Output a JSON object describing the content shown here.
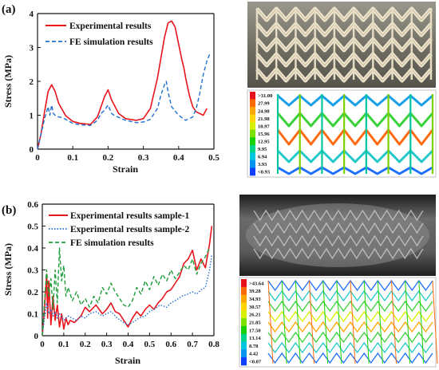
{
  "panels": [
    {
      "label": "(a)",
      "chart_data": {
        "type": "line",
        "xlabel": "Strain",
        "ylabel": "Stress (MPa)",
        "xlim": [
          0,
          0.5
        ],
        "ylim": [
          0,
          4
        ],
        "xticks": [
          "0",
          "0.1",
          "0.2",
          "0.3",
          "0.4",
          "0.5"
        ],
        "yticks": [
          "0",
          "1",
          "2",
          "3",
          "4"
        ],
        "grid": false,
        "legend": "top-left",
        "series": [
          {
            "name": "Experimental results",
            "color": "#e8141c",
            "style": "solid",
            "x": [
              0,
              0.01,
              0.02,
              0.03,
              0.04,
              0.05,
              0.06,
              0.08,
              0.1,
              0.12,
              0.15,
              0.17,
              0.19,
              0.2,
              0.21,
              0.23,
              0.25,
              0.28,
              0.3,
              0.32,
              0.34,
              0.36,
              0.37,
              0.38,
              0.39,
              0.4,
              0.41,
              0.415,
              0.42,
              0.43,
              0.44,
              0.45,
              0.46,
              0.47,
              0.48
            ],
            "y": [
              0,
              0.45,
              1.1,
              1.7,
              1.9,
              1.7,
              1.35,
              0.98,
              0.82,
              0.76,
              0.73,
              0.95,
              1.55,
              1.75,
              1.45,
              1.05,
              0.9,
              0.85,
              0.9,
              1.2,
              2.1,
              3.3,
              3.72,
              3.78,
              3.6,
              3.1,
              2.6,
              2.4,
              2.1,
              1.6,
              1.25,
              1.1,
              1.05,
              1.0,
              1.2
            ]
          },
          {
            "name": "FE simulation results",
            "color": "#1f6fd1",
            "style": "dashed",
            "x": [
              0,
              0.01,
              0.02,
              0.03,
              0.035,
              0.04,
              0.045,
              0.05,
              0.06,
              0.07,
              0.08,
              0.1,
              0.12,
              0.15,
              0.17,
              0.18,
              0.19,
              0.2,
              0.21,
              0.22,
              0.25,
              0.28,
              0.3,
              0.32,
              0.34,
              0.35,
              0.36,
              0.365,
              0.37,
              0.38,
              0.4,
              0.42,
              0.44,
              0.45,
              0.46,
              0.47,
              0.48,
              0.49
            ],
            "y": [
              0,
              0.45,
              0.9,
              1.25,
              1.0,
              1.3,
              1.05,
              1.0,
              0.95,
              0.93,
              0.88,
              0.76,
              0.72,
              0.7,
              0.85,
              1.05,
              1.15,
              1.3,
              1.05,
              0.98,
              0.85,
              0.78,
              0.8,
              0.88,
              1.2,
              1.6,
              1.9,
              2.0,
              1.7,
              1.25,
              1.0,
              0.85,
              0.95,
              1.2,
              1.65,
              2.2,
              2.6,
              2.85
            ]
          }
        ]
      },
      "colorbar_values": [
        "31.00",
        "27.99",
        "24.98",
        "21.98",
        "18.97",
        "15.96",
        "12.95",
        "9.95",
        "6.94",
        "3.93",
        "0.93"
      ]
    },
    {
      "label": "(b)",
      "chart_data": {
        "type": "line",
        "xlabel": "Strain",
        "ylabel": "Stress (MPa)",
        "xlim": [
          0,
          0.8
        ],
        "ylim": [
          0,
          0.6
        ],
        "xticks": [
          "0",
          "0.1",
          "0.2",
          "0.3",
          "0.4",
          "0.5",
          "0.6",
          "0.7",
          "0.8"
        ],
        "yticks": [
          "0",
          "0.1",
          "0.2",
          "0.3",
          "0.4",
          "0.5",
          "0.6"
        ],
        "grid": false,
        "legend": "top-left",
        "series": [
          {
            "name": "Experimental results sample-1",
            "color": "#e8141c",
            "style": "solid",
            "x": [
              0,
              0.01,
              0.02,
              0.025,
              0.03,
              0.04,
              0.05,
              0.06,
              0.07,
              0.08,
              0.09,
              0.1,
              0.11,
              0.12,
              0.13,
              0.15,
              0.18,
              0.2,
              0.22,
              0.25,
              0.28,
              0.3,
              0.32,
              0.34,
              0.36,
              0.38,
              0.4,
              0.42,
              0.44,
              0.46,
              0.48,
              0.5,
              0.52,
              0.54,
              0.56,
              0.58,
              0.6,
              0.62,
              0.64,
              0.66,
              0.68,
              0.7,
              0.72,
              0.74,
              0.76,
              0.78,
              0.79
            ],
            "y": [
              0,
              0.12,
              0.28,
              0.08,
              0.25,
              0.05,
              0.18,
              0.07,
              0.14,
              0.04,
              0.1,
              0.03,
              0.08,
              0.05,
              0.07,
              0.06,
              0.09,
              0.13,
              0.11,
              0.14,
              0.1,
              0.12,
              0.15,
              0.11,
              0.1,
              0.07,
              0.04,
              0.08,
              0.11,
              0.09,
              0.12,
              0.14,
              0.12,
              0.15,
              0.17,
              0.2,
              0.21,
              0.24,
              0.27,
              0.33,
              0.35,
              0.39,
              0.3,
              0.35,
              0.31,
              0.42,
              0.5
            ]
          },
          {
            "name": "Experimental results sample-2",
            "color": "#1f6fd1",
            "style": "dotted",
            "x": [
              0,
              0.01,
              0.02,
              0.03,
              0.04,
              0.05,
              0.06,
              0.07,
              0.08,
              0.1,
              0.12,
              0.14,
              0.16,
              0.18,
              0.2,
              0.22,
              0.25,
              0.28,
              0.3,
              0.32,
              0.35,
              0.38,
              0.4,
              0.42,
              0.45,
              0.48,
              0.5,
              0.52,
              0.55,
              0.58,
              0.6,
              0.62,
              0.65,
              0.68,
              0.7,
              0.72,
              0.74,
              0.76,
              0.78,
              0.79
            ],
            "y": [
              0,
              0.08,
              0.15,
              0.1,
              0.12,
              0.09,
              0.11,
              0.08,
              0.1,
              0.07,
              0.09,
              0.08,
              0.07,
              0.09,
              0.08,
              0.1,
              0.11,
              0.09,
              0.1,
              0.11,
              0.08,
              0.06,
              0.05,
              0.06,
              0.08,
              0.09,
              0.11,
              0.12,
              0.14,
              0.13,
              0.15,
              0.16,
              0.18,
              0.19,
              0.2,
              0.19,
              0.21,
              0.22,
              0.3,
              0.37
            ]
          },
          {
            "name": "FE simulation results",
            "color": "#1e9e3a",
            "style": "dashed",
            "x": [
              0,
              0.01,
              0.02,
              0.03,
              0.04,
              0.05,
              0.06,
              0.07,
              0.08,
              0.09,
              0.1,
              0.11,
              0.12,
              0.14,
              0.16,
              0.18,
              0.2,
              0.22,
              0.24,
              0.26,
              0.28,
              0.3,
              0.32,
              0.34,
              0.36,
              0.38,
              0.4,
              0.42,
              0.44,
              0.46,
              0.48,
              0.5,
              0.52,
              0.54,
              0.56,
              0.58,
              0.6,
              0.62,
              0.64,
              0.66,
              0.68,
              0.7,
              0.72,
              0.74,
              0.76,
              0.78
            ],
            "y": [
              0,
              0.15,
              0.3,
              0.18,
              0.26,
              0.12,
              0.3,
              0.15,
              0.4,
              0.25,
              0.32,
              0.18,
              0.22,
              0.16,
              0.2,
              0.14,
              0.17,
              0.13,
              0.18,
              0.15,
              0.22,
              0.19,
              0.24,
              0.2,
              0.17,
              0.14,
              0.13,
              0.16,
              0.22,
              0.19,
              0.25,
              0.21,
              0.27,
              0.23,
              0.28,
              0.25,
              0.3,
              0.26,
              0.29,
              0.32,
              0.3,
              0.35,
              0.28,
              0.33,
              0.36,
              0.4
            ]
          }
        ]
      },
      "colorbar_values": [
        "43.64",
        "39.28",
        "34.93",
        "30.57",
        "26.21",
        "21.85",
        "17.50",
        "13.14",
        "8.78",
        "4.42",
        "0.07"
      ]
    }
  ],
  "colors": {
    "axis": "#111111",
    "panel_frame": "#888888",
    "photo_a_bg": "#7c7a72",
    "photo_b_bg": "#2a2a2a",
    "colorbar": [
      "#e8101a",
      "#ff6a00",
      "#ffa600",
      "#ffd400",
      "#d7f000",
      "#7be000",
      "#19d000",
      "#00d38a",
      "#00c6e0",
      "#0094f0",
      "#1040ff"
    ]
  }
}
